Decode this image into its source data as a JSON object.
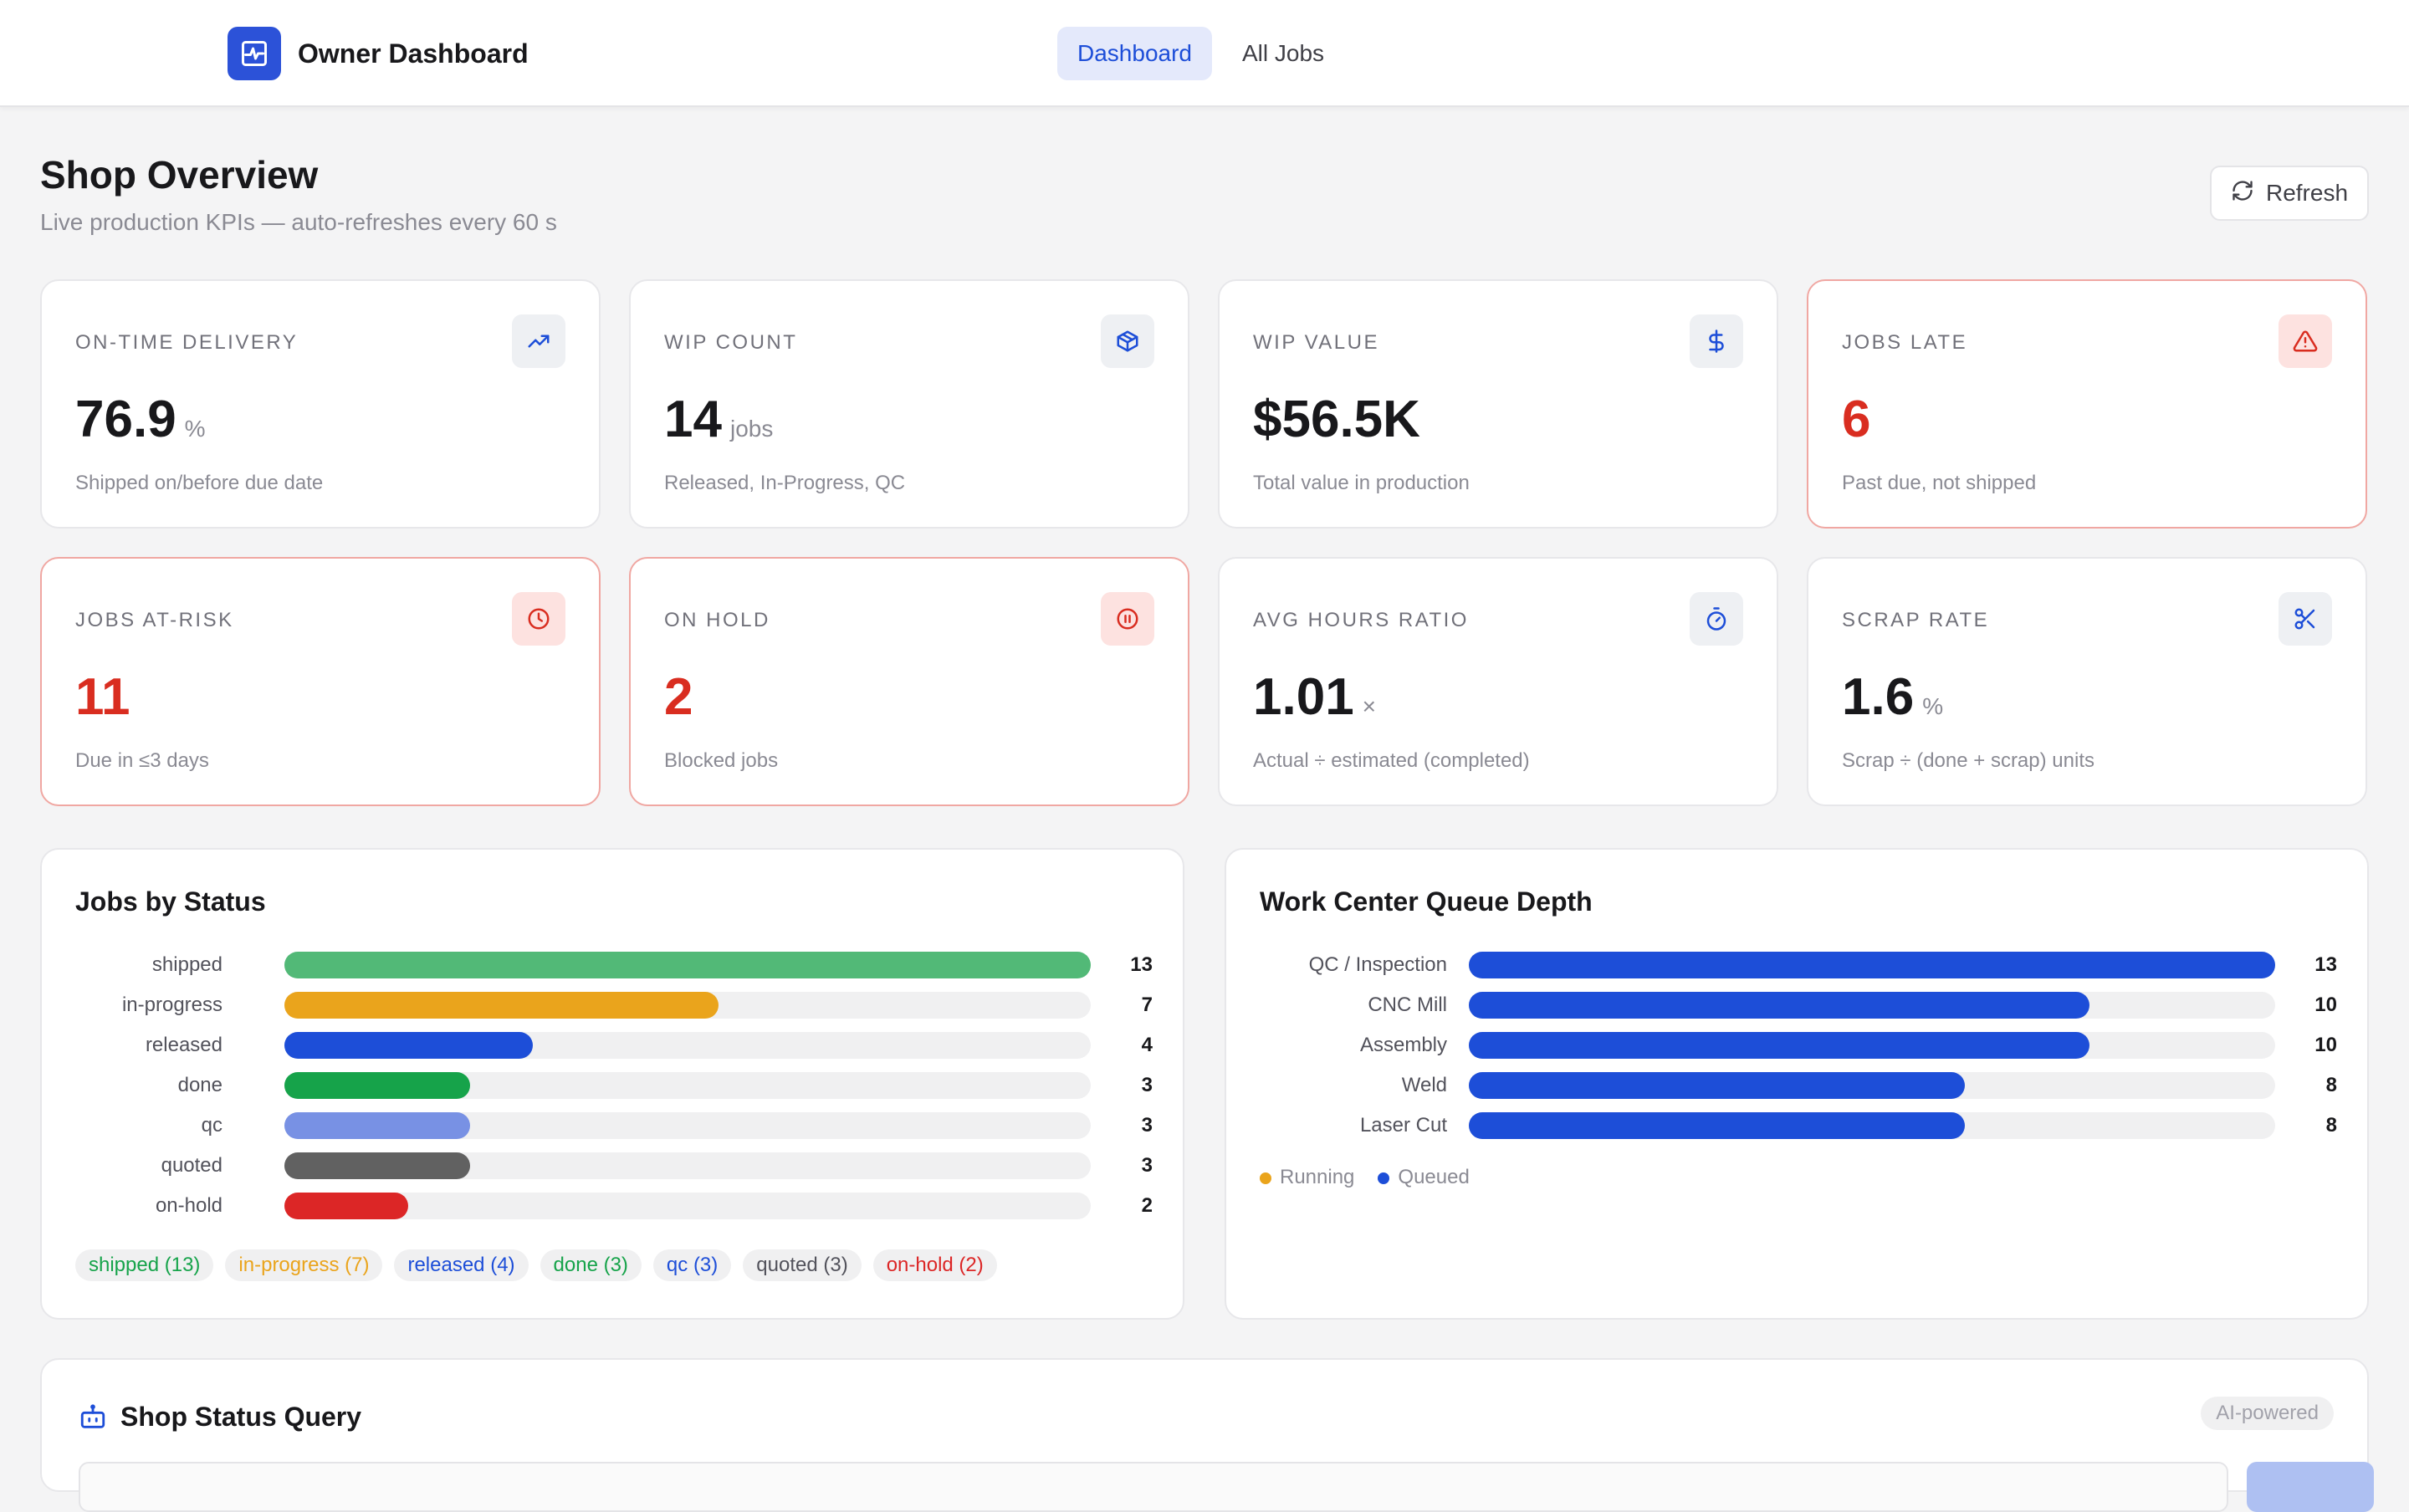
{
  "app": {
    "title": "Owner Dashboard",
    "logo_icon": "activity-icon"
  },
  "nav": [
    {
      "label": "Dashboard",
      "active": true
    },
    {
      "label": "All Jobs",
      "active": false
    }
  ],
  "page": {
    "title": "Shop Overview",
    "subtitle": "Live production KPIs — auto-refreshes every 60 s",
    "refresh_label": "Refresh"
  },
  "kpis": [
    {
      "label": "ON-TIME DELIVERY",
      "value": "76.9",
      "unit": "%",
      "desc": "Shipped on/before due date",
      "icon": "trending-up-icon",
      "alert": false
    },
    {
      "label": "WIP COUNT",
      "value": "14",
      "unit": "jobs",
      "desc": "Released, In-Progress, QC",
      "icon": "package-icon",
      "alert": false
    },
    {
      "label": "WIP VALUE",
      "value": "$56.5K",
      "unit": "",
      "desc": "Total value in production",
      "icon": "dollar-icon",
      "alert": false
    },
    {
      "label": "JOBS LATE",
      "value": "6",
      "unit": "",
      "desc": "Past due, not shipped",
      "icon": "warning-icon",
      "alert": true
    },
    {
      "label": "JOBS AT-RISK",
      "value": "11",
      "unit": "",
      "desc": "Due in ≤3 days",
      "icon": "clock-icon",
      "alert": true
    },
    {
      "label": "ON HOLD",
      "value": "2",
      "unit": "",
      "desc": "Blocked jobs",
      "icon": "pause-icon",
      "alert": true
    },
    {
      "label": "AVG HOURS RATIO",
      "value": "1.01",
      "unit": "×",
      "desc": "Actual ÷ estimated (completed)",
      "icon": "timer-icon",
      "alert": false
    },
    {
      "label": "SCRAP RATE",
      "value": "1.6",
      "unit": "%",
      "desc": "Scrap ÷ (done + scrap) units",
      "icon": "scissors-icon",
      "alert": false
    }
  ],
  "status_panel": {
    "title": "Jobs by Status",
    "max": 13,
    "rows": [
      {
        "label": "shipped",
        "value": 13,
        "color": "#52b977"
      },
      {
        "label": "in-progress",
        "value": 7,
        "color": "#eaa41c"
      },
      {
        "label": "released",
        "value": 4,
        "color": "#1d4ed8"
      },
      {
        "label": "done",
        "value": 3,
        "color": "#16a34a"
      },
      {
        "label": "qc",
        "value": 3,
        "color": "#7891e4"
      },
      {
        "label": "quoted",
        "value": 3,
        "color": "#616161"
      },
      {
        "label": "on-hold",
        "value": 2,
        "color": "#dc2626"
      }
    ],
    "pills": [
      {
        "label": "shipped (13)",
        "color": "#16a34a"
      },
      {
        "label": "in-progress (7)",
        "color": "#eaa41c"
      },
      {
        "label": "released (4)",
        "color": "#1d4ed8"
      },
      {
        "label": "done (3)",
        "color": "#16a34a"
      },
      {
        "label": "qc (3)",
        "color": "#1d4ed8"
      },
      {
        "label": "quoted (3)",
        "color": "#52525b"
      },
      {
        "label": "on-hold (2)",
        "color": "#dc2626"
      }
    ]
  },
  "queue_panel": {
    "title": "Work Center Queue Depth",
    "max": 13,
    "rows": [
      {
        "label": "QC / Inspection",
        "value": 13
      },
      {
        "label": "CNC Mill",
        "value": 10
      },
      {
        "label": "Assembly",
        "value": 10
      },
      {
        "label": "Weld",
        "value": 8
      },
      {
        "label": "Laser Cut",
        "value": 8
      }
    ],
    "bar_color": "#1d4ed8",
    "legend": [
      {
        "label": "Running",
        "color": "#eaa41c"
      },
      {
        "label": "Queued",
        "color": "#1d4ed8"
      }
    ]
  },
  "query": {
    "title": "Shop Status Query",
    "badge": "AI-powered"
  },
  "chart_data": [
    {
      "type": "bar",
      "title": "Jobs by Status",
      "categories": [
        "shipped",
        "in-progress",
        "released",
        "done",
        "qc",
        "quoted",
        "on-hold"
      ],
      "values": [
        13,
        7,
        4,
        3,
        3,
        3,
        2
      ]
    },
    {
      "type": "bar",
      "title": "Work Center Queue Depth",
      "categories": [
        "QC / Inspection",
        "CNC Mill",
        "Assembly",
        "Weld",
        "Laser Cut"
      ],
      "series": [
        {
          "name": "Queued",
          "values": [
            13,
            10,
            10,
            8,
            8
          ]
        }
      ]
    }
  ]
}
